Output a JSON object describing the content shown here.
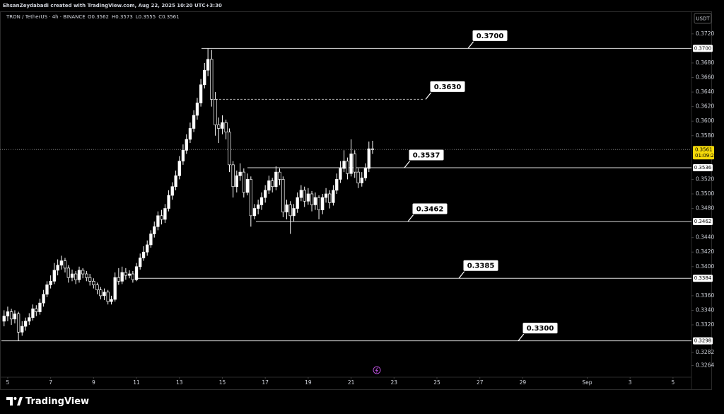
{
  "chart_data": {
    "type": "candlestick",
    "credit": "EhsanZeydabadi created with TradingView.com, Aug 22, 2025 10:20 UTC+3:30",
    "title": "TRON / TetherUS · 4h · BINANCE",
    "ohlc_legend": [
      "O0.3562",
      "H0.3573",
      "L0.3555",
      "C0.3561"
    ],
    "currency": "USDT",
    "brand": "TradingView",
    "x": [
      4.83,
      5,
      5.17,
      5.33,
      5.5,
      5.67,
      5.83,
      6,
      6.17,
      6.33,
      6.5,
      6.67,
      6.83,
      7,
      7.17,
      7.33,
      7.5,
      7.67,
      7.83,
      8,
      8.17,
      8.33,
      8.5,
      8.67,
      8.83,
      9,
      9.17,
      9.33,
      9.5,
      9.67,
      9.83,
      10,
      10.17,
      10.33,
      10.5,
      10.67,
      10.83,
      11,
      11.17,
      11.33,
      11.5,
      11.67,
      11.83,
      12,
      12.17,
      12.33,
      12.5,
      12.67,
      12.83,
      13,
      13.17,
      13.33,
      13.5,
      13.67,
      13.83,
      14,
      14.17,
      14.33,
      14.5,
      14.67,
      14.83,
      15,
      15.17,
      15.33,
      15.5,
      15.67,
      15.83,
      16,
      16.17,
      16.33,
      16.5,
      16.67,
      16.83,
      17,
      17.17,
      17.33,
      17.5,
      17.67,
      17.83,
      18,
      18.17,
      18.33,
      18.5,
      18.67,
      18.83,
      19,
      19.17,
      19.33,
      19.5,
      19.67,
      19.83,
      20,
      20.17,
      20.33,
      20.5,
      20.67,
      20.83,
      21,
      21.17,
      21.33,
      21.5,
      21.67,
      21.83,
      22
    ],
    "open": [
      0.3325,
      0.3332,
      0.3338,
      0.3328,
      0.3335,
      0.331,
      0.3318,
      0.3325,
      0.333,
      0.3342,
      0.3338,
      0.335,
      0.3362,
      0.3375,
      0.338,
      0.3395,
      0.3402,
      0.3408,
      0.3398,
      0.3385,
      0.339,
      0.3382,
      0.3395,
      0.339,
      0.3385,
      0.338,
      0.3375,
      0.3368,
      0.336,
      0.3365,
      0.3352,
      0.3355,
      0.3385,
      0.338,
      0.3392,
      0.3388,
      0.339,
      0.3382,
      0.34,
      0.3412,
      0.342,
      0.343,
      0.3445,
      0.3455,
      0.347,
      0.3465,
      0.348,
      0.3498,
      0.351,
      0.3525,
      0.3545,
      0.356,
      0.3575,
      0.359,
      0.3608,
      0.3625,
      0.365,
      0.367,
      0.3685,
      0.363,
      0.3595,
      0.359,
      0.3598,
      0.3585,
      0.354,
      0.351,
      0.3525,
      0.353,
      0.3502,
      0.352,
      0.347,
      0.348,
      0.3485,
      0.3495,
      0.3505,
      0.3518,
      0.351,
      0.353,
      0.352,
      0.3475,
      0.3485,
      0.347,
      0.348,
      0.3495,
      0.3505,
      0.349,
      0.35,
      0.3485,
      0.3495,
      0.3478,
      0.3495,
      0.35,
      0.3488,
      0.3505,
      0.352,
      0.3535,
      0.3545,
      0.3528,
      0.3555,
      0.353,
      0.3515,
      0.3522,
      0.3535,
      0.3562
    ],
    "high": [
      0.334,
      0.3345,
      0.3342,
      0.334,
      0.3338,
      0.3325,
      0.333,
      0.3336,
      0.3348,
      0.3347,
      0.3356,
      0.3368,
      0.338,
      0.3388,
      0.3405,
      0.341,
      0.3415,
      0.3412,
      0.3402,
      0.3396,
      0.3394,
      0.34,
      0.3398,
      0.3394,
      0.339,
      0.3384,
      0.3378,
      0.3372,
      0.337,
      0.3368,
      0.336,
      0.3392,
      0.3398,
      0.34,
      0.3398,
      0.3395,
      0.3394,
      0.3405,
      0.3418,
      0.3428,
      0.3436,
      0.345,
      0.3462,
      0.3476,
      0.3478,
      0.3486,
      0.3505,
      0.3516,
      0.3532,
      0.3552,
      0.3568,
      0.3582,
      0.3598,
      0.3615,
      0.3632,
      0.3658,
      0.368,
      0.37,
      0.3698,
      0.364,
      0.3605,
      0.3608,
      0.3602,
      0.359,
      0.3545,
      0.3532,
      0.3542,
      0.3535,
      0.3528,
      0.3524,
      0.3486,
      0.3492,
      0.3502,
      0.3512,
      0.3525,
      0.3522,
      0.3538,
      0.3535,
      0.3524,
      0.3492,
      0.349,
      0.3486,
      0.3502,
      0.3512,
      0.351,
      0.3508,
      0.3504,
      0.3502,
      0.3498,
      0.35,
      0.3508,
      0.3505,
      0.3512,
      0.3528,
      0.3545,
      0.356,
      0.355,
      0.3575,
      0.356,
      0.3535,
      0.353,
      0.3542,
      0.3572,
      0.3573
    ],
    "low": [
      0.3318,
      0.3325,
      0.332,
      0.3322,
      0.3298,
      0.3305,
      0.3312,
      0.332,
      0.3326,
      0.3332,
      0.3334,
      0.3345,
      0.3358,
      0.337,
      0.3376,
      0.3388,
      0.3396,
      0.3392,
      0.3378,
      0.338,
      0.3376,
      0.3378,
      0.3384,
      0.338,
      0.3374,
      0.337,
      0.3362,
      0.3355,
      0.3354,
      0.3348,
      0.3348,
      0.3352,
      0.3375,
      0.3376,
      0.3382,
      0.3384,
      0.3378,
      0.338,
      0.3396,
      0.3408,
      0.3415,
      0.3426,
      0.344,
      0.345,
      0.3458,
      0.346,
      0.3476,
      0.3492,
      0.3505,
      0.352,
      0.354,
      0.3555,
      0.357,
      0.3585,
      0.3602,
      0.362,
      0.3645,
      0.3662,
      0.362,
      0.358,
      0.357,
      0.3582,
      0.3575,
      0.353,
      0.3495,
      0.3502,
      0.3518,
      0.3495,
      0.3498,
      0.3455,
      0.3465,
      0.3472,
      0.3478,
      0.3488,
      0.35,
      0.3502,
      0.3505,
      0.3512,
      0.3468,
      0.3465,
      0.3445,
      0.3462,
      0.3474,
      0.349,
      0.3482,
      0.3485,
      0.3476,
      0.3478,
      0.3465,
      0.3472,
      0.3488,
      0.348,
      0.3484,
      0.35,
      0.3515,
      0.353,
      0.352,
      0.3524,
      0.3522,
      0.3508,
      0.351,
      0.3518,
      0.353,
      0.3555
    ],
    "close": [
      0.3332,
      0.3338,
      0.3328,
      0.3335,
      0.331,
      0.3318,
      0.3325,
      0.333,
      0.3342,
      0.3338,
      0.335,
      0.3362,
      0.3375,
      0.338,
      0.3395,
      0.3402,
      0.3408,
      0.3398,
      0.3385,
      0.339,
      0.3382,
      0.3395,
      0.339,
      0.3385,
      0.338,
      0.3375,
      0.3368,
      0.336,
      0.3365,
      0.3352,
      0.3355,
      0.3385,
      0.338,
      0.3392,
      0.3388,
      0.339,
      0.3382,
      0.34,
      0.3412,
      0.342,
      0.343,
      0.3445,
      0.3455,
      0.347,
      0.3465,
      0.348,
      0.3498,
      0.351,
      0.3525,
      0.3545,
      0.356,
      0.3575,
      0.359,
      0.3608,
      0.3625,
      0.365,
      0.367,
      0.3685,
      0.363,
      0.3595,
      0.359,
      0.3598,
      0.3585,
      0.354,
      0.351,
      0.3525,
      0.353,
      0.3502,
      0.352,
      0.347,
      0.348,
      0.3485,
      0.3495,
      0.3505,
      0.3518,
      0.351,
      0.353,
      0.352,
      0.3475,
      0.3485,
      0.347,
      0.348,
      0.3495,
      0.3505,
      0.349,
      0.35,
      0.3485,
      0.3495,
      0.3478,
      0.3495,
      0.35,
      0.3488,
      0.3505,
      0.352,
      0.3535,
      0.3545,
      0.3528,
      0.3555,
      0.353,
      0.3515,
      0.3522,
      0.3535,
      0.3562,
      0.3561
    ],
    "up_color": "#ffffff",
    "down_color": "#000000",
    "xlim": [
      4.64,
      36.86
    ],
    "xticks": [
      5,
      7,
      9,
      11,
      13,
      15,
      17,
      19,
      21,
      23,
      25,
      27,
      29,
      {
        "value": 32,
        "label": "Sep"
      },
      {
        "value": 34,
        "label": "3"
      },
      {
        "value": 36,
        "label": "5"
      }
    ],
    "ylim": [
      0.3249,
      0.375
    ],
    "yticks": [
      {
        "value": 0.372,
        "label": "0.3720"
      },
      {
        "value": 0.368,
        "label": "0.3680"
      },
      {
        "value": 0.366,
        "label": "0.3660"
      },
      {
        "value": 0.364,
        "label": "0.3640"
      },
      {
        "value": 0.362,
        "label": "0.3620"
      },
      {
        "value": 0.36,
        "label": "0.3600"
      },
      {
        "value": 0.358,
        "label": "0.3580"
      },
      {
        "value": 0.352,
        "label": "0.3520"
      },
      {
        "value": 0.35,
        "label": "0.3500"
      },
      {
        "value": 0.348,
        "label": "0.3480"
      },
      {
        "value": 0.344,
        "label": "0.3440"
      },
      {
        "value": 0.342,
        "label": "0.3420"
      },
      {
        "value": 0.34,
        "label": "0.3400"
      },
      {
        "value": 0.336,
        "label": "0.3360"
      },
      {
        "value": 0.334,
        "label": "0.3340"
      },
      {
        "value": 0.332,
        "label": "0.3320"
      },
      0.3282,
      0.3264
    ],
    "levels": [
      {
        "line": {
          "value": 0.37,
          "label": "0.3700"
        },
        "callout": {
          "value": 0.37,
          "label": "0.3700"
        },
        "dashed": false
      },
      {
        "callout": {
          "value": 0.363,
          "label": "0.3630"
        },
        "dashed": true
      },
      {
        "line": 0.3536,
        "callout": 0.3537,
        "dashed": false
      },
      {
        "line": 0.3462,
        "callout": 0.3462,
        "dashed": false
      },
      {
        "line": 0.3384,
        "callout": 0.3385,
        "dashed": false
      },
      {
        "line": 0.3298,
        "callout": {
          "value": 0.33,
          "label": "0.3300"
        },
        "dashed": false
      }
    ],
    "last_price": 0.3561,
    "countdown": "01:09:21",
    "last_color": "#f5d90a"
  }
}
